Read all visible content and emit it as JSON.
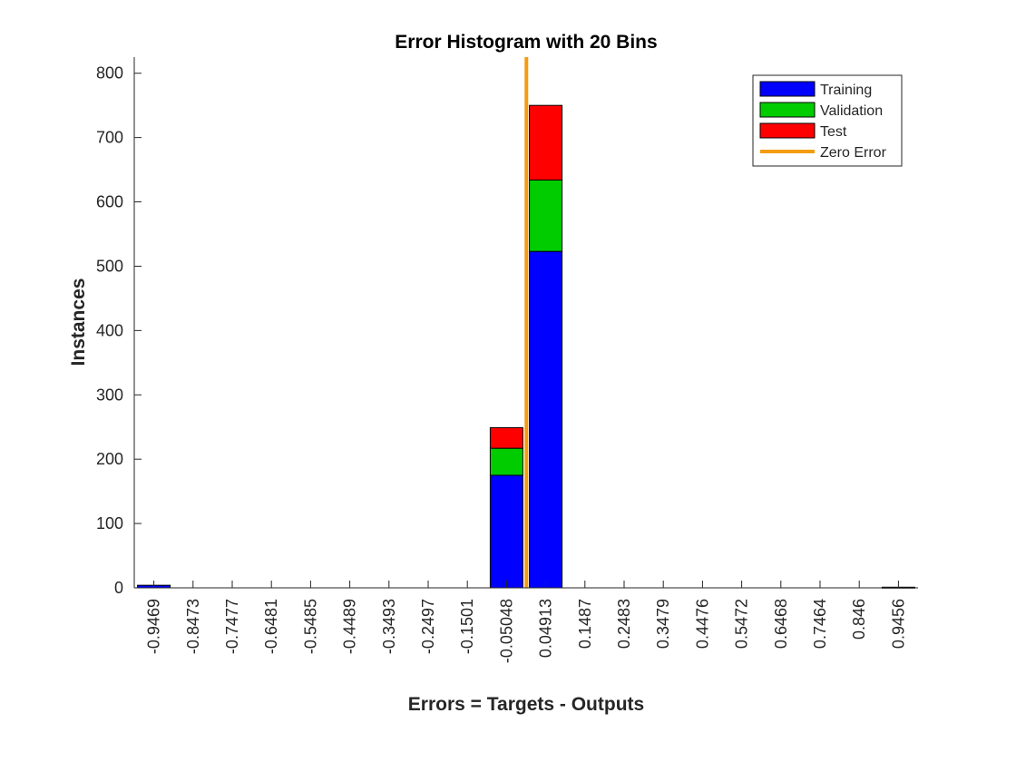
{
  "chart_data": {
    "type": "bar",
    "stacked": true,
    "title": "Error Histogram with 20 Bins",
    "xlabel": "Errors = Targets - Outputs",
    "ylabel": "Instances",
    "ylim": [
      0,
      825
    ],
    "yticks": [
      0,
      100,
      200,
      300,
      400,
      500,
      600,
      700,
      800
    ],
    "categories": [
      "-0.9469",
      "-0.8473",
      "-0.7477",
      "-0.6481",
      "-0.5485",
      "-0.4489",
      "-0.3493",
      "-0.2497",
      "-0.1501",
      "-0.05048",
      "0.04913",
      "0.1487",
      "0.2483",
      "0.3479",
      "0.4476",
      "0.5472",
      "0.6468",
      "0.7464",
      "0.846",
      "0.9456"
    ],
    "bin_centers": [
      -0.9469,
      -0.8473,
      -0.7477,
      -0.6481,
      -0.5485,
      -0.4489,
      -0.3493,
      -0.2497,
      -0.1501,
      -0.05048,
      0.04913,
      0.1487,
      0.2483,
      0.3479,
      0.4476,
      0.5472,
      0.6468,
      0.7464,
      0.846,
      0.9456
    ],
    "series": [
      {
        "name": "Training",
        "color": "#0000ff",
        "values": [
          4,
          0,
          0,
          0,
          0,
          0,
          0,
          0,
          0,
          175,
          523,
          0,
          0,
          0,
          0,
          0,
          0,
          0,
          0,
          1
        ]
      },
      {
        "name": "Validation",
        "color": "#00cc00",
        "values": [
          0,
          0,
          0,
          0,
          0,
          0,
          0,
          0,
          0,
          42,
          111,
          0,
          0,
          0,
          0,
          0,
          0,
          0,
          0,
          0
        ]
      },
      {
        "name": "Test",
        "color": "#ff0000",
        "values": [
          0,
          0,
          0,
          0,
          0,
          0,
          0,
          0,
          0,
          32,
          116,
          0,
          0,
          0,
          0,
          0,
          0,
          0,
          0,
          0
        ]
      }
    ],
    "reference_line": {
      "name": "Zero Error",
      "x": 0,
      "color": "#f39c12"
    },
    "legend_position": "top-right",
    "grid": false
  }
}
